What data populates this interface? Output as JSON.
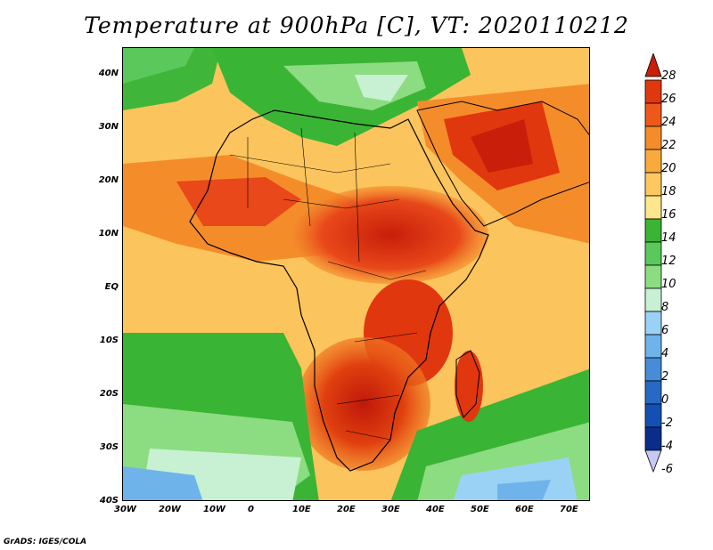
{
  "title": "Temperature at 900hPa [C], VT: 2020110212",
  "credit": "GrADS: IGES/COLA",
  "map": {
    "lon_ticks": [
      "30W",
      "20W",
      "10W",
      "0",
      "10E",
      "20E",
      "30E",
      "40E",
      "50E",
      "60E",
      "70E"
    ],
    "lat_ticks": [
      "40N",
      "30N",
      "20N",
      "10N",
      "EQ",
      "10S",
      "20S",
      "30S",
      "40S"
    ],
    "lon_range": [
      -30,
      75
    ],
    "lat_range": [
      -40,
      45
    ]
  },
  "colorbar": {
    "labels": [
      "28",
      "26",
      "24",
      "22",
      "20",
      "18",
      "16",
      "14",
      "12",
      "10",
      "8",
      "6",
      "4",
      "2",
      "0",
      "-2",
      "-4",
      "-6"
    ],
    "colors": [
      "#c81e0a",
      "#e1370f",
      "#f0581a",
      "#f58c2a",
      "#f9aa3c",
      "#fcc85f",
      "#fde68c",
      "#3ab434",
      "#5ac85a",
      "#8cdc82",
      "#c8f0d2",
      "#9ad2f5",
      "#6eb4eb",
      "#468cd7",
      "#2869c3",
      "#1450b4",
      "#0a2d8c",
      "#c8c8f5"
    ]
  }
}
